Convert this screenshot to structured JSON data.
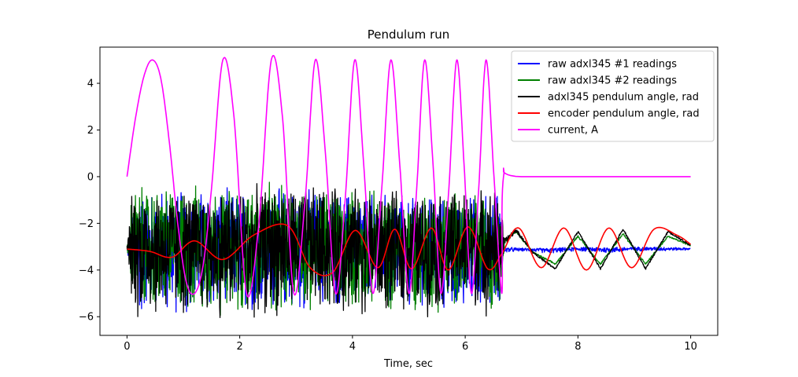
{
  "chart_data": {
    "type": "line",
    "title": "Pendulum run",
    "xlabel": "Time, sec",
    "ylabel": "",
    "xlim": [
      -0.48,
      10.48
    ],
    "ylim": [
      -6.8,
      5.55
    ],
    "xticks": [
      0,
      2,
      4,
      6,
      8,
      10
    ],
    "yticks": [
      -6,
      -4,
      -2,
      0,
      2,
      4
    ],
    "ytick_labels": [
      "−6",
      "−4",
      "−2",
      "0",
      "2",
      "4"
    ],
    "grid": false,
    "legend_position": "top-right",
    "series": [
      {
        "name": "raw adxl345 #1 readings",
        "color": "#0000ff",
        "style": "noise",
        "x": [
          0,
          0.1,
          0.2,
          1.0,
          2.0,
          3.0,
          4.0,
          5.0,
          6.0,
          6.6,
          6.7,
          7.0,
          7.5,
          8.0,
          8.5,
          9.0,
          9.5,
          10.0
        ],
        "lower": [
          -3.3,
          -5.0,
          -6.3,
          -6.3,
          -6.2,
          -6.1,
          -6.0,
          -6.0,
          -6.0,
          -6.1,
          -3.3,
          -3.2,
          -3.3,
          -3.2,
          -3.3,
          -3.2,
          -3.2,
          -3.15
        ],
        "upper": [
          -3.0,
          -1.3,
          -0.4,
          -0.3,
          -0.4,
          -0.3,
          -0.5,
          -0.6,
          -0.7,
          -0.4,
          -3.0,
          -3.05,
          -3.05,
          -3.0,
          -3.0,
          -3.0,
          -3.0,
          -3.05
        ]
      },
      {
        "name": "raw adxl345 #2 readings",
        "color": "#008000",
        "style": "noise",
        "x": [
          0,
          0.1,
          0.2,
          1.0,
          2.0,
          3.0,
          4.0,
          5.0,
          6.0,
          6.6,
          6.7,
          6.9,
          7.2,
          7.6,
          8.0,
          8.4,
          8.8,
          9.2,
          9.6,
          10.0
        ],
        "lower": [
          -3.2,
          -6.0,
          -6.3,
          -6.3,
          -6.2,
          -6.2,
          -6.1,
          -6.0,
          -6.0,
          -5.9,
          -3.0,
          -2.4,
          -3.3,
          -3.8,
          -2.6,
          -3.8,
          -2.5,
          -3.8,
          -2.6,
          -3.0
        ],
        "upper": [
          -2.9,
          -0.1,
          -0.2,
          -0.2,
          -0.2,
          -0.1,
          -0.4,
          -0.5,
          -0.4,
          -0.6,
          -2.6,
          -2.3,
          -3.2,
          -3.7,
          -2.5,
          -3.7,
          -2.4,
          -3.7,
          -2.5,
          -2.9
        ]
      },
      {
        "name": "adxl345 pendulum angle, rad",
        "color": "#000000",
        "style": "noise",
        "x": [
          0,
          0.1,
          0.2,
          1.0,
          2.0,
          3.0,
          4.0,
          5.0,
          6.0,
          6.6,
          6.7,
          6.9,
          7.2,
          7.6,
          8.0,
          8.4,
          8.8,
          9.2,
          9.6,
          10.0
        ],
        "lower": [
          -3.2,
          -6.2,
          -6.3,
          -6.3,
          -6.3,
          -6.2,
          -6.2,
          -6.1,
          -6.0,
          -6.1,
          -3.0,
          -2.4,
          -3.3,
          -4.0,
          -2.4,
          -4.0,
          -2.3,
          -4.0,
          -2.4,
          -3.0
        ],
        "upper": [
          -2.9,
          -0.2,
          -0.3,
          -0.4,
          -0.3,
          -0.2,
          -0.3,
          -0.6,
          -0.4,
          -0.3,
          -2.6,
          -2.2,
          -3.2,
          -3.9,
          -2.3,
          -3.9,
          -2.2,
          -3.9,
          -2.3,
          -2.9
        ]
      },
      {
        "name": "encoder pendulum angle, rad",
        "color": "#ff0000",
        "style": "line",
        "x": [
          0,
          0.4,
          0.8,
          1.2,
          1.7,
          2.25,
          2.85,
          3.25,
          3.65,
          4.05,
          4.45,
          4.75,
          5.05,
          5.4,
          5.7,
          6.05,
          6.4,
          6.65,
          6.95,
          7.35,
          7.75,
          8.15,
          8.55,
          8.95,
          9.35,
          9.75,
          10.0
        ],
        "y": [
          -3.1,
          -3.2,
          -3.45,
          -2.75,
          -3.55,
          -2.5,
          -2.1,
          -3.9,
          -4.1,
          -2.3,
          -3.9,
          -2.25,
          -3.95,
          -2.2,
          -4.0,
          -2.15,
          -3.95,
          -3.3,
          -2.2,
          -3.9,
          -2.2,
          -4.0,
          -2.2,
          -3.9,
          -2.25,
          -2.5,
          -2.9
        ]
      },
      {
        "name": "current, A",
        "color": "#ff00ff",
        "style": "line",
        "x": [
          0,
          0.15,
          0.3,
          0.45,
          0.6,
          0.75,
          0.9,
          1.05,
          1.2,
          1.35,
          1.5,
          1.7,
          1.9,
          2.12,
          2.34,
          2.56,
          2.76,
          2.96,
          3.16,
          3.34,
          3.52,
          3.7,
          3.87,
          4.04,
          4.2,
          4.36,
          4.52,
          4.68,
          4.84,
          5.0,
          5.14,
          5.28,
          5.43,
          5.57,
          5.71,
          5.85,
          5.98,
          6.11,
          6.24,
          6.37,
          6.51,
          6.65,
          6.68,
          7.0,
          10.0
        ],
        "y": [
          0,
          2.5,
          4.3,
          5.0,
          4.2,
          1.5,
          -2.0,
          -4.5,
          -5.0,
          -3.8,
          -0.5,
          5.0,
          2.5,
          -5.0,
          -2.0,
          5.0,
          2.5,
          -5.0,
          -1.0,
          5.0,
          1.0,
          -5.0,
          -1.0,
          5.0,
          0.5,
          -5.0,
          -0.5,
          5.0,
          0.5,
          -5.0,
          -0.5,
          5.0,
          0.5,
          -5.0,
          -0.5,
          5.0,
          0.5,
          -5.0,
          -0.5,
          5.0,
          0.0,
          -5.0,
          0.0,
          0.0,
          0.0
        ]
      }
    ]
  }
}
